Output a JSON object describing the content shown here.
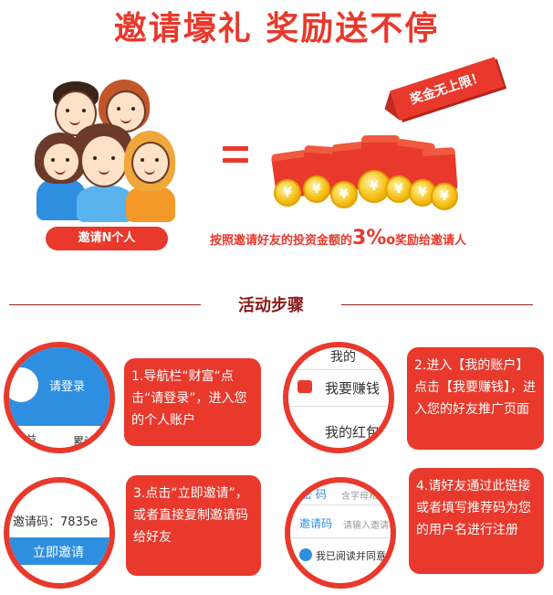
{
  "headline": "邀请壕礼 奖励送不停",
  "invite_label": "邀请N个人",
  "ribbon": "奖金无上限！",
  "coin_symbol": "¥",
  "reward": {
    "prefix": "按照邀请好友的投资金额的",
    "rate": "3‰",
    "suffix": "奖励给邀请人"
  },
  "steps_title": "活动步骤",
  "steps": [
    {
      "text": "1.导航栏“财富“点击“请登录”，进入您的个人账户",
      "thumb": {
        "login": "请登录",
        "earnings": "日收益",
        "accum": "累计"
      }
    },
    {
      "text": "2.进入【我的账户】点击【我要赚钱】，进入您的好友推广页面",
      "thumb": {
        "top": "我的",
        "middle": "我要赚钱",
        "bottom": "我的红包"
      }
    },
    {
      "text": "3.点击“立即邀请”，或者直接复制邀请码给好友",
      "thumb": {
        "code": "邀请码：7835e",
        "button": "立即邀请"
      }
    },
    {
      "text": "4.请好友通过此链接或者填写推荐码为您的用户名进行注册",
      "thumb": {
        "pwd": "密 码",
        "pwd_hint": "含字母和",
        "code": "邀请码",
        "code_hint": "请输入邀请码",
        "agree": "我已阅读并同意"
      }
    }
  ],
  "colors": {
    "accent": "#e8392c",
    "dark_red": "#8b1a1a",
    "blue": "#2e8fe0"
  }
}
